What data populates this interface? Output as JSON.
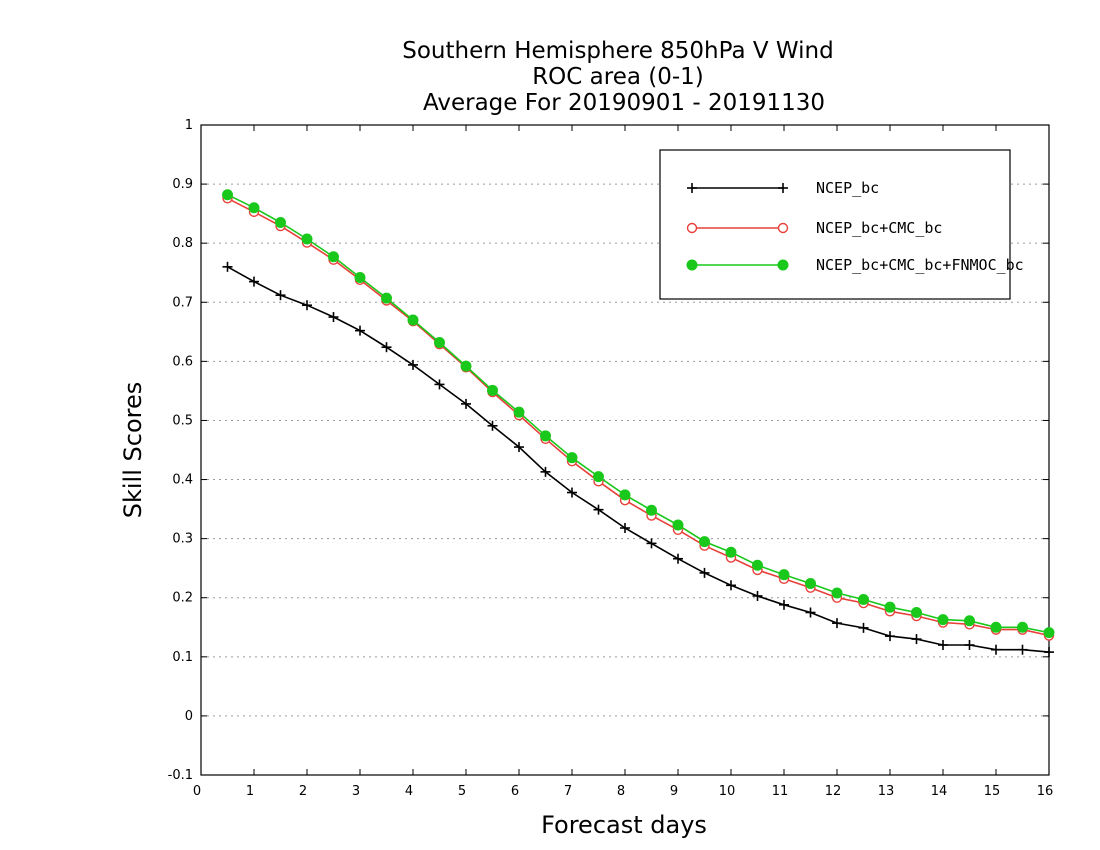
{
  "chart_data": {
    "type": "line",
    "title": [
      "Southern Hemisphere 850hPa V Wind",
      "ROC area (0-1)",
      "Average For 20190901 - 20191130"
    ],
    "xlabel": "Forecast days",
    "ylabel": "Skill Scores",
    "xlim": [
      0,
      16
    ],
    "ylim": [
      -0.1,
      1
    ],
    "xticks": [
      "0",
      "1",
      "2",
      "3",
      "4",
      "5",
      "6",
      "7",
      "8",
      "9",
      "10",
      "11",
      "12",
      "13",
      "14",
      "15",
      "16"
    ],
    "yticks": [
      "-0.1",
      "0",
      "0.1",
      "0.2",
      "0.3",
      "0.4",
      "0.5",
      "0.6",
      "0.7",
      "0.8",
      "0.9",
      "1"
    ],
    "grid": true,
    "legend_position": "top-right",
    "x": [
      0.5,
      1,
      1.5,
      2,
      2.5,
      3,
      3.5,
      4,
      4.5,
      5,
      5.5,
      6,
      6.5,
      7,
      7.5,
      8,
      8.5,
      9,
      9.5,
      10,
      10.5,
      11,
      11.5,
      12,
      12.5,
      13,
      13.5,
      14,
      14.5,
      15,
      15.5,
      16
    ],
    "series": [
      {
        "name": "NCEP_bc",
        "color": "#000000",
        "marker": "plus",
        "values": [
          0.76,
          0.735,
          0.712,
          0.695,
          0.675,
          0.652,
          0.624,
          0.594,
          0.561,
          0.528,
          0.491,
          0.455,
          0.413,
          0.378,
          0.349,
          0.318,
          0.292,
          0.266,
          0.242,
          0.221,
          0.203,
          0.188,
          0.175,
          0.157,
          0.149,
          0.135,
          0.13,
          0.12,
          0.12,
          0.112,
          0.112,
          0.108
        ]
      },
      {
        "name": "NCEP_bc+CMC_bc",
        "color": "#e8403a",
        "marker": "open-circle",
        "values": [
          0.876,
          0.853,
          0.829,
          0.801,
          0.772,
          0.738,
          0.703,
          0.668,
          0.629,
          0.59,
          0.548,
          0.509,
          0.469,
          0.431,
          0.397,
          0.365,
          0.339,
          0.315,
          0.288,
          0.268,
          0.247,
          0.232,
          0.217,
          0.2,
          0.191,
          0.177,
          0.169,
          0.158,
          0.155,
          0.146,
          0.146,
          0.136
        ]
      },
      {
        "name": "NCEP_bc+CMC_bc+FNMOC_bc",
        "color": "#19c81b",
        "marker": "filled-circle",
        "values": [
          0.882,
          0.86,
          0.835,
          0.807,
          0.777,
          0.742,
          0.707,
          0.67,
          0.632,
          0.592,
          0.551,
          0.514,
          0.474,
          0.437,
          0.405,
          0.374,
          0.348,
          0.323,
          0.295,
          0.277,
          0.255,
          0.239,
          0.224,
          0.208,
          0.197,
          0.184,
          0.175,
          0.163,
          0.161,
          0.15,
          0.15,
          0.141
        ]
      }
    ]
  }
}
